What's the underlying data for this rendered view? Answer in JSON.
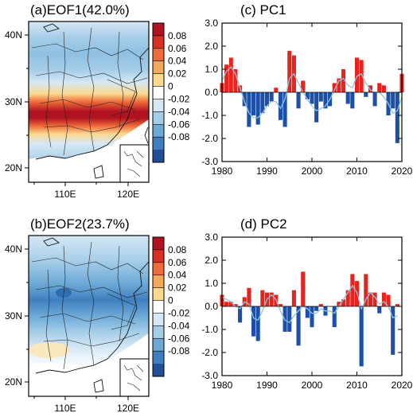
{
  "chart_data": [
    {
      "type": "heatmap",
      "panel": "a",
      "title": "(a)EOF1(42.0%)",
      "x_ticks": [
        "110E",
        "120E"
      ],
      "y_ticks": [
        "20N",
        "30N",
        "40N"
      ],
      "colorbar": {
        "labels": [
          "0.08",
          "0.06",
          "0.04",
          "0.02",
          "0",
          "-0.02",
          "-0.04",
          "-0.06",
          "-0.08"
        ],
        "colors": [
          "#b1121f",
          "#d93022",
          "#ee6b3a",
          "#f6a85c",
          "#fbd98f",
          "#ffffff",
          "#d6e8f5",
          "#a5cde8",
          "#6ca9d7",
          "#3f7fbf",
          "#1f4f96"
        ]
      },
      "pattern": "Positive loadings (0.06–0.08) in a zonal belt near 27–30N; negative loadings (-0.02 to -0.04) over the north and weaker negative values to the south"
    },
    {
      "type": "bar",
      "panel": "c",
      "title": "(c) PC1",
      "x": [
        1980,
        1981,
        1982,
        1983,
        1984,
        1985,
        1986,
        1987,
        1988,
        1989,
        1990,
        1991,
        1992,
        1993,
        1994,
        1995,
        1996,
        1997,
        1998,
        1999,
        2000,
        2001,
        2002,
        2003,
        2004,
        2005,
        2006,
        2007,
        2008,
        2009,
        2010,
        2011,
        2012,
        2013,
        2014,
        2015,
        2016,
        2017,
        2018,
        2019,
        2020
      ],
      "values": [
        0.4,
        1.2,
        1.5,
        1.0,
        0.3,
        -0.6,
        -1.5,
        -1.0,
        -1.4,
        -0.9,
        -0.6,
        -0.4,
        0.2,
        -1.2,
        -1.5,
        1.8,
        1.6,
        -0.7,
        0.5,
        -0.3,
        -0.5,
        -1.3,
        -0.4,
        -0.7,
        -0.6,
        0.4,
        0.6,
        1.0,
        -0.5,
        -0.7,
        1.5,
        1.4,
        -0.2,
        0.3,
        -0.6,
        0.4,
        0.3,
        -1.0,
        -0.7,
        -2.2,
        0.8
      ],
      "smoothed": [
        0.5,
        0.9,
        1.1,
        0.8,
        0.2,
        -0.4,
        -0.9,
        -1.1,
        -1.1,
        -0.9,
        -0.6,
        -0.4,
        -0.4,
        -0.7,
        -0.3,
        0.6,
        0.8,
        0.4,
        0.0,
        -0.3,
        -0.6,
        -0.8,
        -0.7,
        -0.6,
        -0.3,
        0.1,
        0.5,
        0.6,
        0.3,
        0.2,
        0.7,
        0.8,
        0.4,
        0.1,
        0.0,
        0.0,
        -0.2,
        -0.5,
        -0.9,
        -0.8,
        -0.2
      ],
      "xlim": [
        1980,
        2020
      ],
      "ylim": [
        -3.0,
        3.0
      ],
      "x_ticks": [
        1980,
        1990,
        2000,
        2010,
        2020
      ],
      "y_ticks": [
        "3.0",
        "2.0",
        "1.0",
        "0.0",
        "-1.0",
        "-2.0",
        "-3.0"
      ],
      "positive_color": "#e8231e",
      "negative_color": "#1b4fa8",
      "smooth_color": "#8fc3de"
    },
    {
      "type": "heatmap",
      "panel": "b",
      "title": "(b)EOF2(23.7%)",
      "x_ticks": [
        "110E",
        "120E"
      ],
      "y_ticks": [
        "20N",
        "30N",
        "40N"
      ],
      "colorbar": {
        "labels": [
          "0.08",
          "0.06",
          "0.04",
          "0.02",
          "0",
          "-0.02",
          "-0.04",
          "-0.06",
          "-0.08"
        ],
        "colors": [
          "#b1121f",
          "#d93022",
          "#ee6b3a",
          "#f6a85c",
          "#fbd98f",
          "#ffffff",
          "#d6e8f5",
          "#a5cde8",
          "#6ca9d7",
          "#3f7fbf",
          "#1f4f96"
        ]
      },
      "pattern": "Negative loadings (-0.04 to -0.06) centred near 30–33N; weakly positive values in the far southwest near 23N"
    },
    {
      "type": "bar",
      "panel": "d",
      "title": "(d) PC2",
      "x": [
        1980,
        1981,
        1982,
        1983,
        1984,
        1985,
        1986,
        1987,
        1988,
        1989,
        1990,
        1991,
        1992,
        1993,
        1994,
        1995,
        1996,
        1997,
        1998,
        1999,
        2000,
        2001,
        2002,
        2003,
        2004,
        2005,
        2006,
        2007,
        2008,
        2009,
        2010,
        2011,
        2012,
        2013,
        2014,
        2015,
        2016,
        2017,
        2018,
        2019
      ],
      "values": [
        0.5,
        0.2,
        0.2,
        0.1,
        -0.7,
        0.4,
        0.8,
        -1.3,
        -1.5,
        0.7,
        0.6,
        0.6,
        0.5,
        0.1,
        -1.1,
        -1.1,
        0.7,
        -1.7,
        1.5,
        -0.5,
        -0.9,
        -0.2,
        0.1,
        -0.4,
        0.0,
        -0.9,
        0.2,
        0.3,
        0.7,
        1.4,
        1.1,
        -2.6,
        1.4,
        0.6,
        0.6,
        -0.3,
        0.6,
        0.5,
        -2.1,
        0.1
      ],
      "smoothed": [
        0.4,
        0.3,
        0.2,
        0.0,
        -0.1,
        0.2,
        0.1,
        -0.5,
        -0.6,
        -0.2,
        0.3,
        0.5,
        0.3,
        -0.2,
        -0.6,
        -0.7,
        -0.4,
        -0.2,
        0.0,
        -0.1,
        -0.3,
        -0.3,
        -0.1,
        -0.2,
        -0.2,
        -0.3,
        0.0,
        0.3,
        0.6,
        0.9,
        0.6,
        -0.1,
        0.3,
        0.6,
        0.4,
        0.1,
        0.2,
        0.0,
        -0.5,
        -0.4
      ],
      "xlim": [
        1980,
        2020
      ],
      "ylim": [
        -3.0,
        3.0
      ],
      "x_ticks": [
        1980,
        1990,
        2000,
        2010,
        2020
      ],
      "y_ticks": [
        "3.0",
        "2.0",
        "1.0",
        "0.0",
        "-1.0",
        "-2.0",
        "-3.0"
      ],
      "positive_color": "#e8231e",
      "negative_color": "#1b4fa8",
      "smooth_color": "#8fc3de"
    }
  ]
}
